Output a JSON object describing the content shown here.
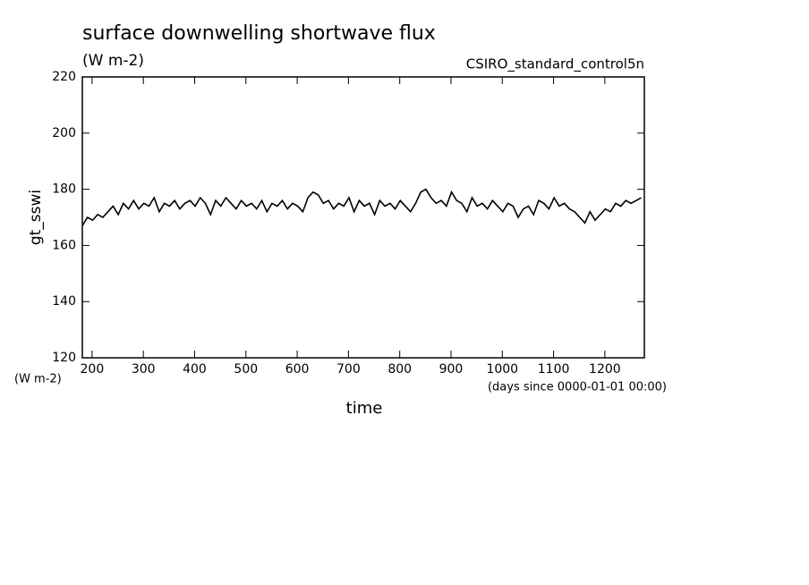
{
  "chart_data": {
    "type": "line",
    "title": "surface downwelling shortwave flux",
    "subtitle": "(W m-2)",
    "annotation": "CSIRO_standard_control5n",
    "y_label": "gt_sswi",
    "y_unit": "(W m-2)",
    "x_label": "time",
    "x_unit": "(days since 0000-01-01 00:00)",
    "xlim": [
      181,
      1277
    ],
    "ylim": [
      120,
      220
    ],
    "xticks": [
      200,
      300,
      400,
      500,
      600,
      700,
      800,
      900,
      1000,
      1100,
      1200
    ],
    "yticks": [
      120,
      140,
      160,
      180,
      200,
      220
    ],
    "x": [
      181,
      191,
      201,
      211,
      221,
      231,
      241,
      251,
      261,
      271,
      281,
      291,
      301,
      311,
      321,
      331,
      341,
      351,
      361,
      371,
      381,
      391,
      401,
      411,
      421,
      431,
      441,
      451,
      461,
      471,
      481,
      491,
      501,
      511,
      521,
      531,
      541,
      551,
      561,
      571,
      581,
      591,
      601,
      611,
      621,
      631,
      641,
      651,
      661,
      671,
      681,
      691,
      701,
      711,
      721,
      731,
      741,
      751,
      761,
      771,
      781,
      791,
      801,
      811,
      821,
      831,
      841,
      851,
      861,
      871,
      881,
      891,
      901,
      911,
      921,
      931,
      941,
      951,
      961,
      971,
      981,
      991,
      1001,
      1011,
      1021,
      1031,
      1041,
      1051,
      1061,
      1071,
      1081,
      1091,
      1101,
      1111,
      1121,
      1131,
      1141,
      1151,
      1161,
      1171,
      1181,
      1191,
      1201,
      1211,
      1221,
      1231,
      1241,
      1251,
      1261,
      1271
    ],
    "series": [
      {
        "name": "gt_sswi",
        "color": "#000000",
        "values": [
          167,
          170,
          169,
          171,
          170,
          172,
          174,
          171,
          175,
          173,
          176,
          173,
          175,
          174,
          177,
          172,
          175,
          174,
          176,
          173,
          175,
          176,
          174,
          177,
          175,
          171,
          176,
          174,
          177,
          175,
          173,
          176,
          174,
          175,
          173,
          176,
          172,
          175,
          174,
          176,
          173,
          175,
          174,
          172,
          177,
          179,
          178,
          175,
          176,
          173,
          175,
          174,
          177,
          172,
          176,
          174,
          175,
          171,
          176,
          174,
          175,
          173,
          176,
          174,
          172,
          175,
          179,
          180,
          177,
          175,
          176,
          174,
          179,
          176,
          175,
          172,
          177,
          174,
          175,
          173,
          176,
          174,
          172,
          175,
          174,
          170,
          173,
          174,
          171,
          176,
          175,
          173,
          177,
          174,
          175,
          173,
          172,
          170,
          168,
          172,
          169,
          171,
          173,
          172,
          175,
          174,
          176,
          175,
          176,
          177
        ]
      }
    ]
  }
}
